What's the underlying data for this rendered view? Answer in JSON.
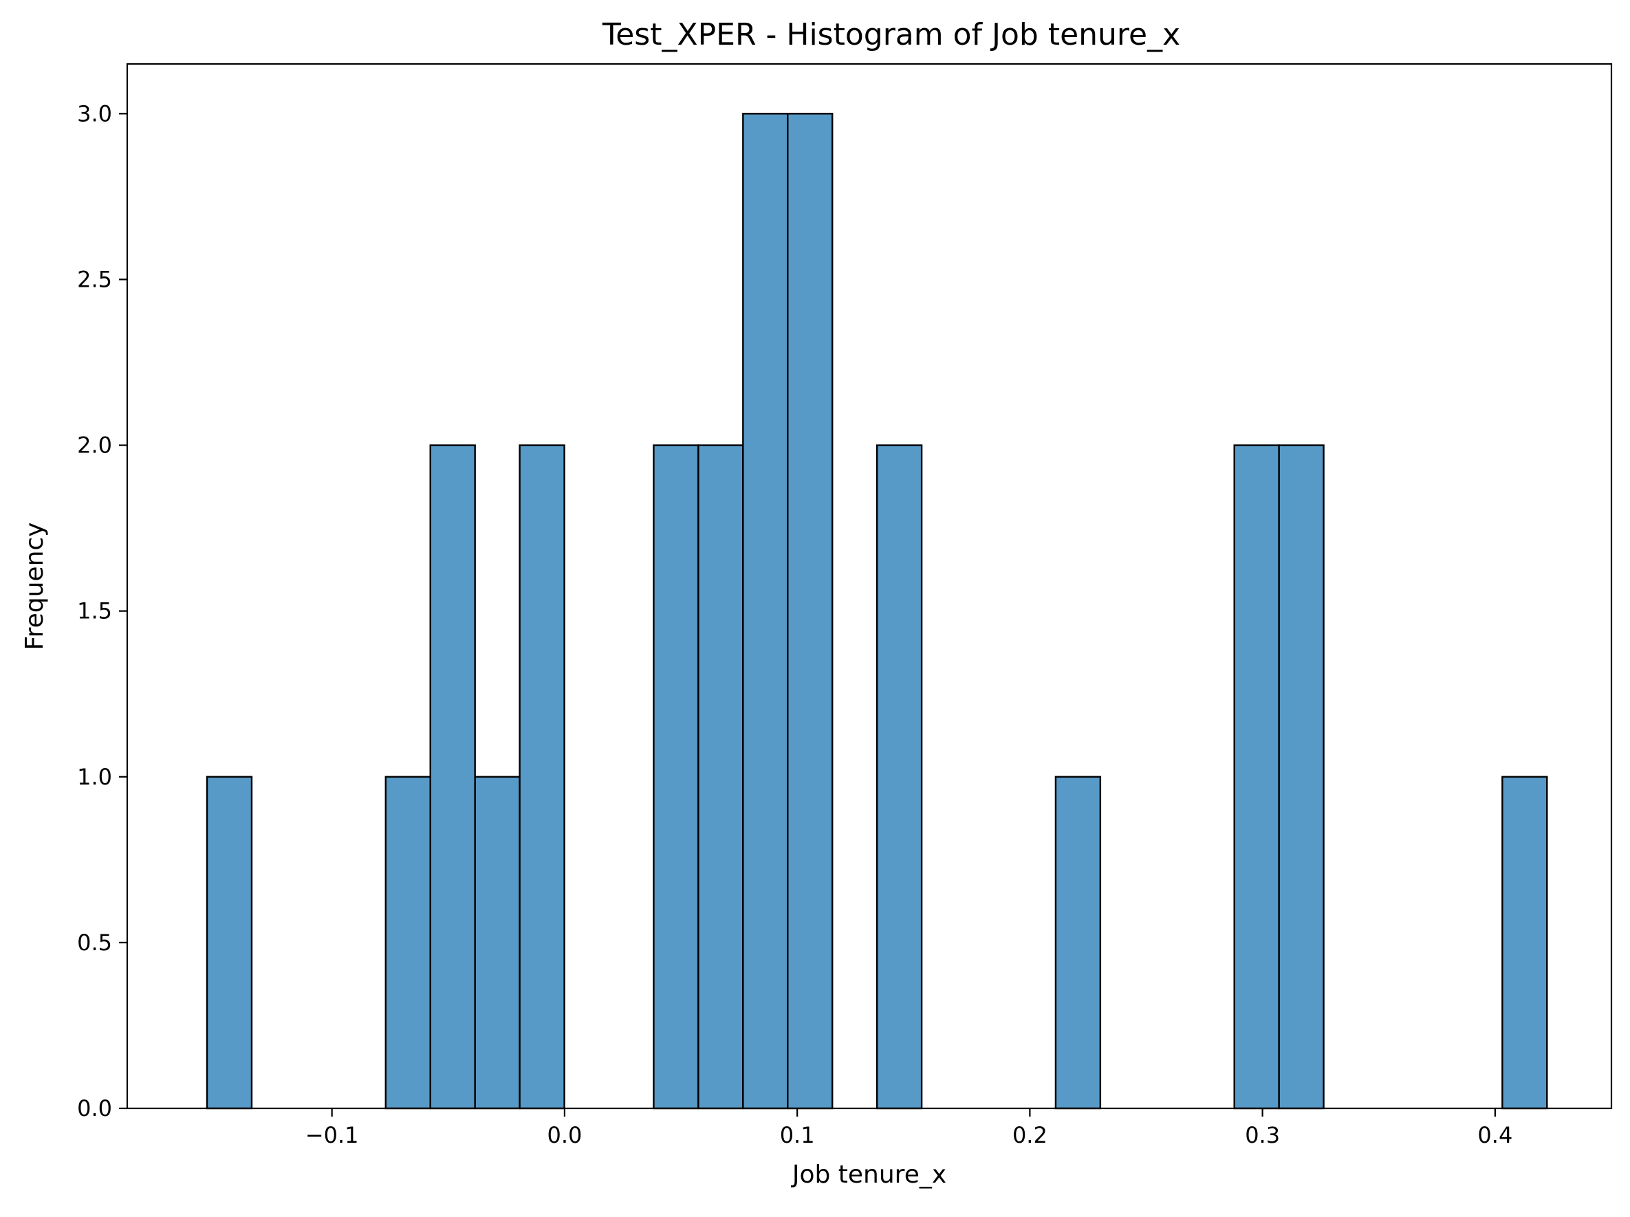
{
  "chart_data": {
    "type": "bar",
    "title": "Test_XPER - Histogram of Job tenure_x",
    "xlabel": "Job tenure_x",
    "ylabel": "Frequency",
    "xlim": [
      -0.188,
      0.45
    ],
    "ylim": [
      0,
      3.15
    ],
    "grid": false,
    "bin_edges": [
      -0.1537,
      -0.1345,
      -0.1153,
      -0.0961,
      -0.0769,
      -0.0577,
      -0.0385,
      -0.0193,
      -0.0001,
      0.0191,
      0.0383,
      0.0575,
      0.0767,
      0.0959,
      0.1151,
      0.1343,
      0.1535,
      0.1727,
      0.1919,
      0.2111,
      0.2303,
      0.2495,
      0.2687,
      0.2879,
      0.3071,
      0.3263,
      0.3455,
      0.3647,
      0.3839,
      0.4031,
      0.4223
    ],
    "values": [
      1,
      0,
      0,
      0,
      1,
      2,
      1,
      2,
      0,
      0,
      2,
      2,
      3,
      3,
      0,
      2,
      0,
      0,
      0,
      1,
      0,
      0,
      0,
      2,
      2,
      0,
      0,
      0,
      0,
      1
    ],
    "x_ticks": [
      {
        "value": -0.1,
        "label": "−0.1"
      },
      {
        "value": 0.0,
        "label": "0.0"
      },
      {
        "value": 0.1,
        "label": "0.1"
      },
      {
        "value": 0.2,
        "label": "0.2"
      },
      {
        "value": 0.3,
        "label": "0.3"
      },
      {
        "value": 0.4,
        "label": "0.4"
      }
    ],
    "y_ticks": [
      {
        "value": 0.0,
        "label": "0.0"
      },
      {
        "value": 0.5,
        "label": "0.5"
      },
      {
        "value": 1.0,
        "label": "1.0"
      },
      {
        "value": 1.5,
        "label": "1.5"
      },
      {
        "value": 2.0,
        "label": "2.0"
      },
      {
        "value": 2.5,
        "label": "2.5"
      },
      {
        "value": 3.0,
        "label": "3.0"
      }
    ],
    "bar_color": "#5799c7",
    "edge_color": "#000000"
  }
}
